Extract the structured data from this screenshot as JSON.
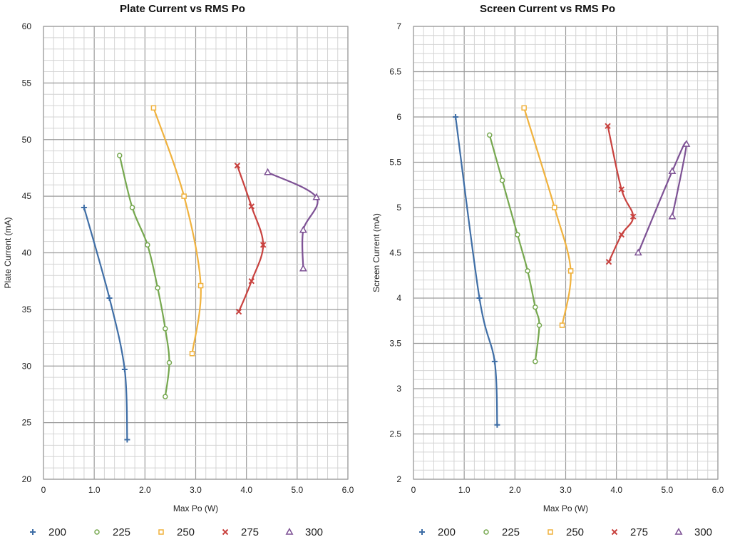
{
  "chart_data": [
    {
      "type": "scatter",
      "title": "Plate Current vs RMS Po",
      "xlabel": "Max Po (W)",
      "ylabel": "Plate Current (mA)",
      "xlim": [
        0,
        6
      ],
      "ylim": [
        20,
        60
      ],
      "x_ticks": [
        "0",
        "1.0",
        "2.0",
        "3.0",
        "4.0",
        "5.0",
        "6.0"
      ],
      "y_ticks": [
        "20",
        "25",
        "30",
        "35",
        "40",
        "45",
        "50",
        "55",
        "60"
      ],
      "grid": true,
      "legend_position": "bottom",
      "smoothed_lines": true,
      "series": [
        {
          "name": "200",
          "color": "#3F6EA6",
          "marker": "plus",
          "points": [
            [
              0.8,
              44.0
            ],
            [
              1.3,
              36.0
            ],
            [
              1.6,
              29.7
            ],
            [
              1.65,
              23.5
            ]
          ]
        },
        {
          "name": "225",
          "color": "#76A84F",
          "marker": "circle",
          "points": [
            [
              1.5,
              48.6
            ],
            [
              1.75,
              44.0
            ],
            [
              2.05,
              40.7
            ],
            [
              2.25,
              36.9
            ],
            [
              2.4,
              33.3
            ],
            [
              2.48,
              30.3
            ],
            [
              2.4,
              27.3
            ]
          ]
        },
        {
          "name": "250",
          "color": "#F0B23E",
          "marker": "square",
          "points": [
            [
              2.17,
              52.8
            ],
            [
              2.77,
              45.0
            ],
            [
              3.1,
              37.1
            ],
            [
              2.93,
              31.1
            ]
          ]
        },
        {
          "name": "275",
          "color": "#C8413E",
          "marker": "x",
          "points": [
            [
              3.82,
              47.7
            ],
            [
              4.1,
              44.1
            ],
            [
              4.33,
              40.7
            ],
            [
              4.1,
              37.5
            ],
            [
              3.85,
              34.8
            ]
          ]
        },
        {
          "name": "300",
          "color": "#7E5295",
          "marker": "triangle",
          "points": [
            [
              4.42,
              47.1
            ],
            [
              5.38,
              44.9
            ],
            [
              5.12,
              42.0
            ],
            [
              5.12,
              38.6
            ]
          ]
        }
      ]
    },
    {
      "type": "scatter",
      "title": "Screen Current vs RMS Po",
      "xlabel": "Max Po (W)",
      "ylabel": "Screen Current (mA)",
      "xlim": [
        0,
        6
      ],
      "ylim": [
        2,
        7
      ],
      "x_ticks": [
        "0",
        "1.0",
        "2.0",
        "3.0",
        "4.0",
        "5.0",
        "6.0"
      ],
      "y_ticks": [
        "2",
        "2.5",
        "3",
        "3.5",
        "4",
        "4.5",
        "5",
        "5.5",
        "6",
        "6.5",
        "7"
      ],
      "grid": true,
      "legend_position": "bottom",
      "smoothed_lines": true,
      "series": [
        {
          "name": "200",
          "color": "#3F6EA6",
          "marker": "plus",
          "points": [
            [
              0.83,
              6.0
            ],
            [
              1.3,
              4.0
            ],
            [
              1.6,
              3.3
            ],
            [
              1.65,
              2.6
            ]
          ]
        },
        {
          "name": "225",
          "color": "#76A84F",
          "marker": "circle",
          "points": [
            [
              1.5,
              5.8
            ],
            [
              1.75,
              5.3
            ],
            [
              2.05,
              4.7
            ],
            [
              2.25,
              4.3
            ],
            [
              2.4,
              3.9
            ],
            [
              2.48,
              3.7
            ],
            [
              2.4,
              3.3
            ]
          ]
        },
        {
          "name": "250",
          "color": "#F0B23E",
          "marker": "square",
          "points": [
            [
              2.18,
              6.1
            ],
            [
              2.78,
              5.0
            ],
            [
              3.1,
              4.3
            ],
            [
              2.93,
              3.7
            ]
          ]
        },
        {
          "name": "275",
          "color": "#C8413E",
          "marker": "x",
          "points": [
            [
              3.83,
              5.9
            ],
            [
              4.1,
              5.2
            ],
            [
              4.33,
              4.9
            ],
            [
              4.1,
              4.7
            ],
            [
              3.85,
              4.4
            ]
          ]
        },
        {
          "name": "300",
          "color": "#7E5295",
          "marker": "triangle",
          "points": [
            [
              4.43,
              4.5
            ],
            [
              5.1,
              5.4
            ],
            [
              5.38,
              5.7
            ],
            [
              5.1,
              4.9
            ]
          ]
        }
      ]
    }
  ]
}
